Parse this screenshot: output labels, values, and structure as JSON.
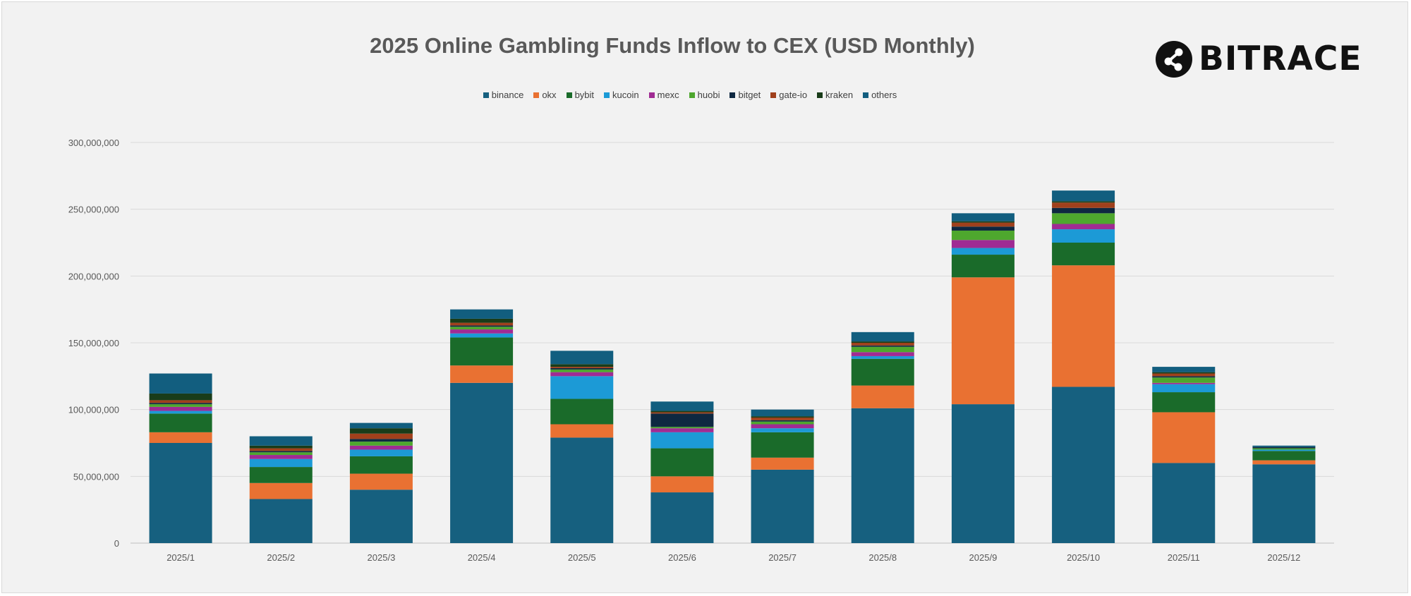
{
  "chart_data": {
    "type": "bar",
    "stacked": true,
    "title": "2025 Online Gambling Funds Inflow to CEX (USD Monthly)",
    "xlabel": "",
    "ylabel": "",
    "ylim": [
      0,
      300000000
    ],
    "yticks": [
      "0",
      "50,000,000",
      "100,000,000",
      "150,000,000",
      "200,000,000",
      "250,000,000",
      "300,000,000"
    ],
    "grid": true,
    "legend_position": "top",
    "categories": [
      "2025/1",
      "2025/2",
      "2025/3",
      "2025/4",
      "2025/5",
      "2025/6",
      "2025/7",
      "2025/8",
      "2025/9",
      "2025/10",
      "2025/11",
      "2025/12"
    ],
    "series": [
      {
        "name": "binance",
        "color": "#16607f",
        "values": [
          75000000,
          33000000,
          40000000,
          120000000,
          79000000,
          38000000,
          55000000,
          101000000,
          104000000,
          117000000,
          60000000,
          59000000
        ]
      },
      {
        "name": "okx",
        "color": "#e97132",
        "values": [
          8000000,
          12000000,
          12000000,
          13000000,
          10000000,
          12000000,
          9000000,
          17000000,
          95000000,
          91000000,
          38000000,
          3000000
        ]
      },
      {
        "name": "bybit",
        "color": "#1a6b2a",
        "values": [
          14000000,
          12000000,
          13000000,
          21000000,
          19000000,
          21000000,
          19000000,
          20000000,
          17000000,
          17000000,
          15000000,
          7000000
        ]
      },
      {
        "name": "kucoin",
        "color": "#1c9ad6",
        "values": [
          2000000,
          6000000,
          5000000,
          3000000,
          17000000,
          12000000,
          3000000,
          2000000,
          5000000,
          10000000,
          6000000,
          1000000
        ]
      },
      {
        "name": "mexc",
        "color": "#a02b93",
        "values": [
          3000000,
          3000000,
          3000000,
          3000000,
          3000000,
          3000000,
          3000000,
          3000000,
          6000000,
          4000000,
          1000000,
          0
        ]
      },
      {
        "name": "huobi",
        "color": "#4ea72e",
        "values": [
          2000000,
          2000000,
          3000000,
          2000000,
          2000000,
          1000000,
          2000000,
          4000000,
          7000000,
          8000000,
          4000000,
          1000000
        ]
      },
      {
        "name": "bitget",
        "color": "#0e2841",
        "values": [
          1000000,
          1000000,
          2000000,
          1000000,
          1000000,
          10000000,
          1000000,
          1000000,
          3000000,
          4000000,
          1000000,
          1000000
        ]
      },
      {
        "name": "gate-io",
        "color": "#a0401c",
        "values": [
          2000000,
          2000000,
          4000000,
          2000000,
          1000000,
          1000000,
          2000000,
          2000000,
          3000000,
          4000000,
          2000000,
          0
        ]
      },
      {
        "name": "kraken",
        "color": "#193c19",
        "values": [
          5000000,
          2000000,
          4000000,
          3000000,
          2000000,
          1000000,
          1000000,
          1000000,
          1000000,
          1000000,
          1000000,
          0
        ]
      },
      {
        "name": "others",
        "color": "#125e7f",
        "values": [
          15000000,
          7000000,
          4000000,
          7000000,
          10000000,
          7000000,
          5000000,
          7000000,
          6000000,
          8000000,
          4000000,
          1000000
        ]
      }
    ]
  },
  "logo": {
    "text": "BITRACE"
  }
}
